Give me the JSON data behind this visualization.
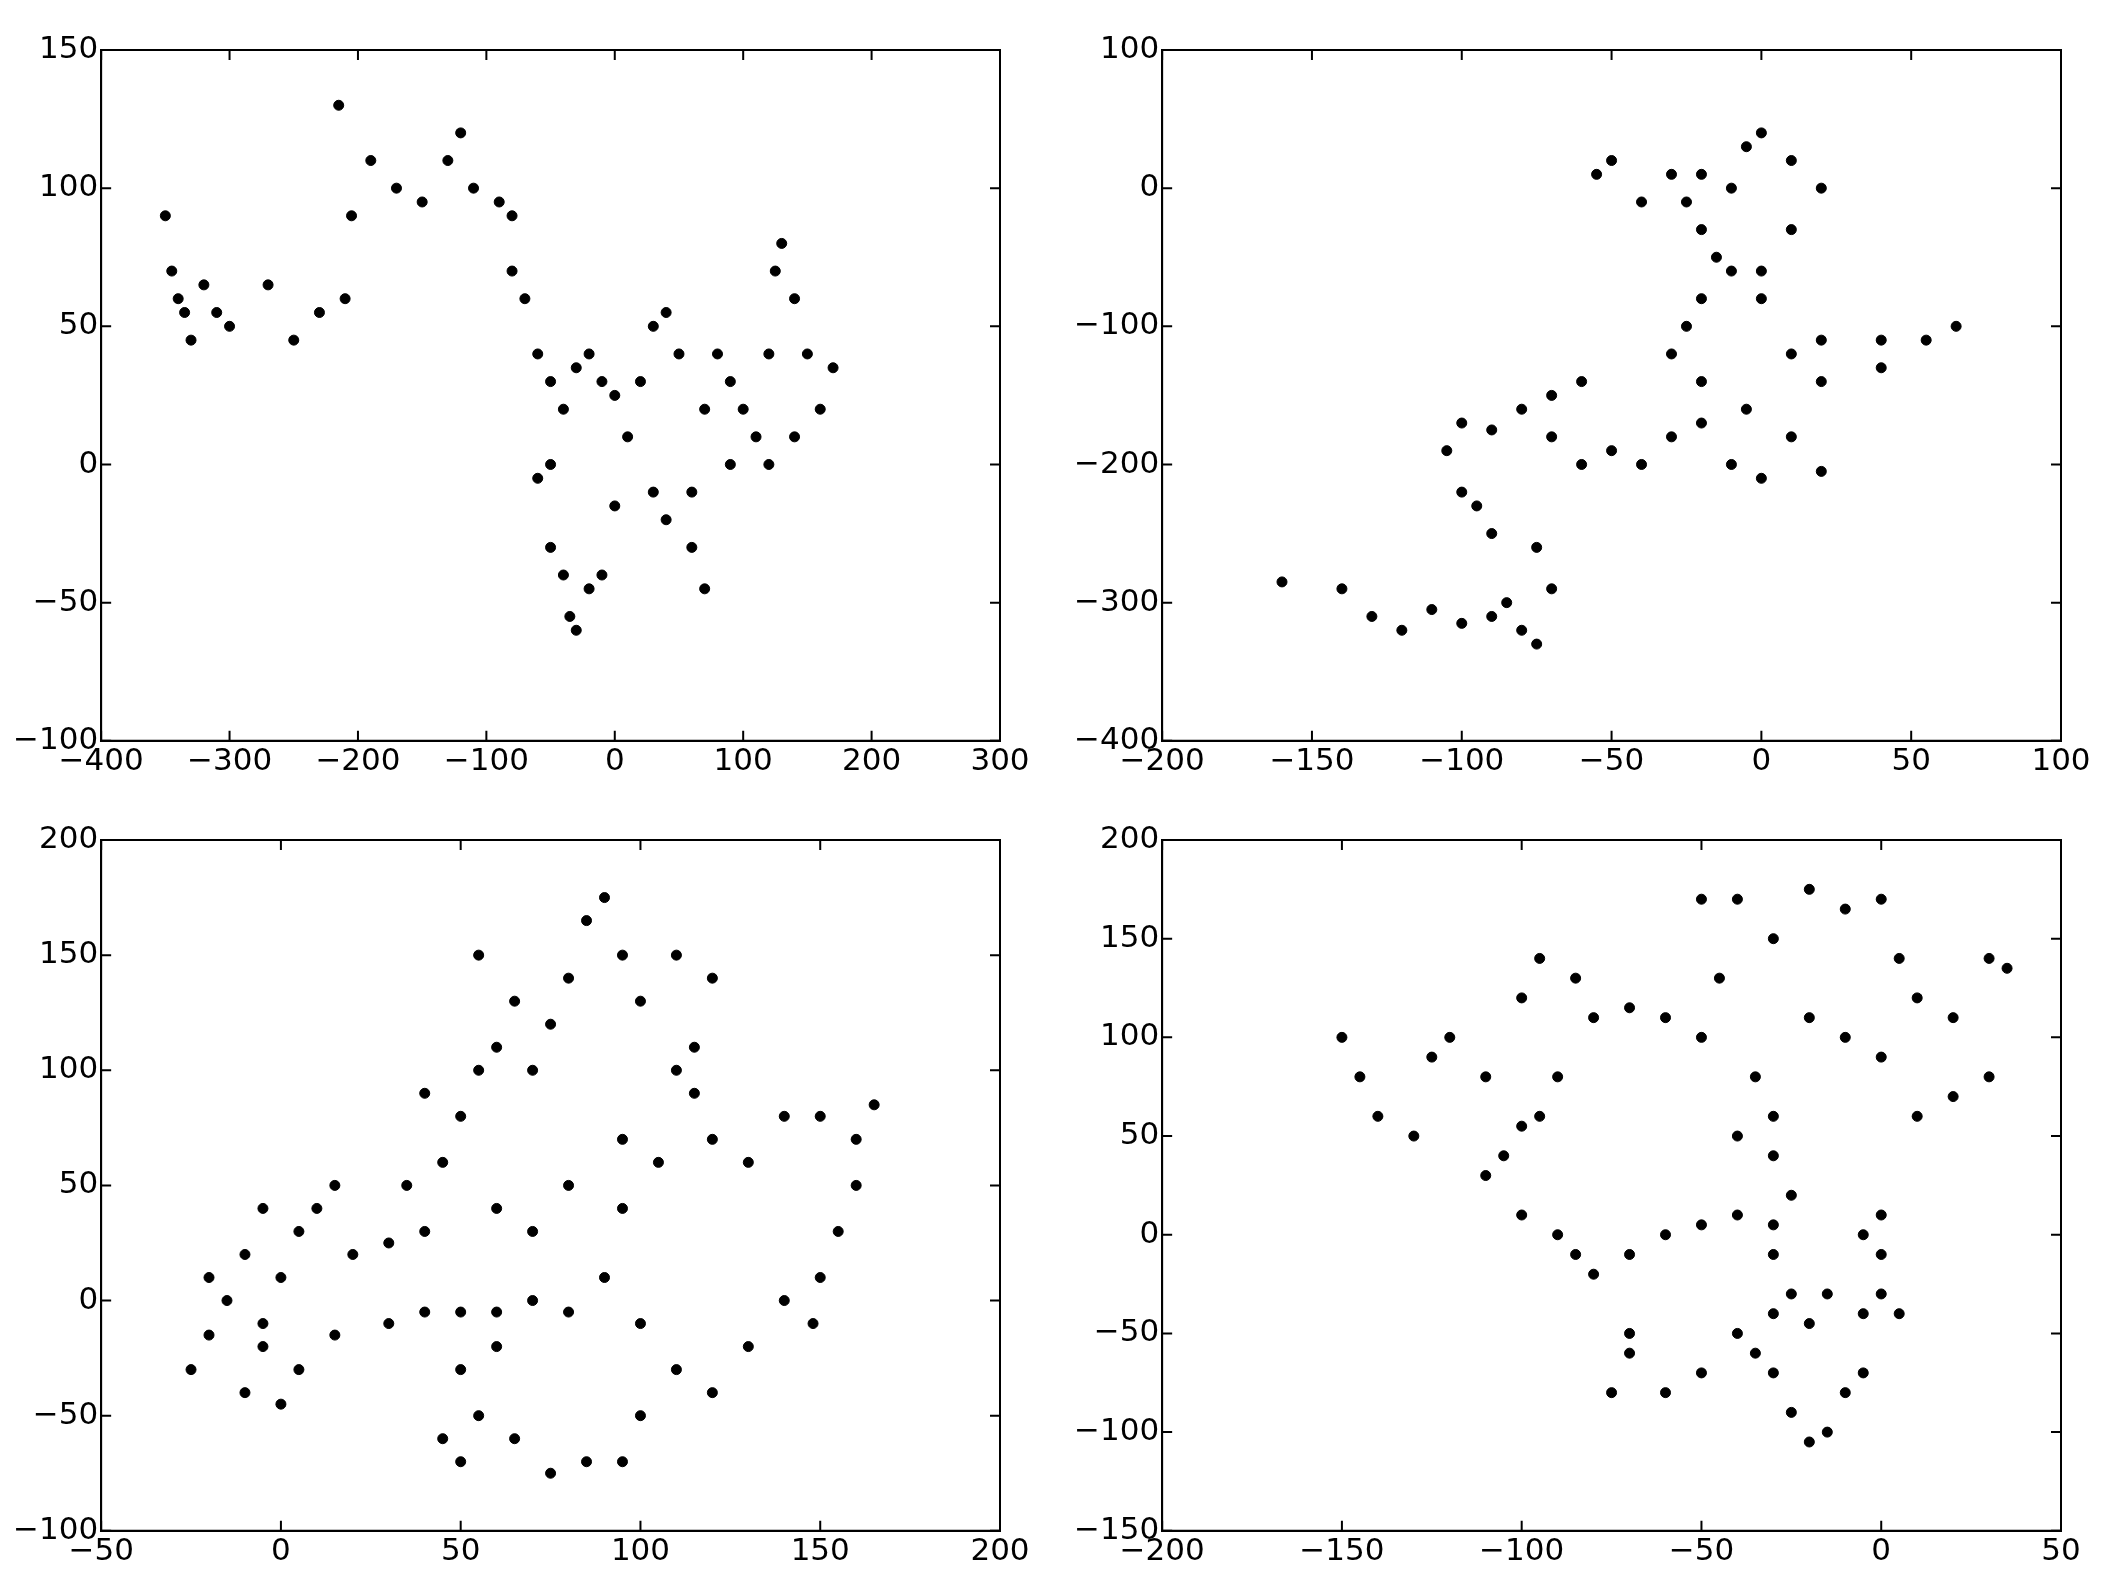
{
  "chart_data": [
    {
      "type": "scatter",
      "color": "#000000",
      "marker": "circle",
      "grid": false,
      "x": [
        -350,
        -345,
        -335,
        -330,
        -320,
        -310,
        -340,
        -300,
        -270,
        -250,
        -230,
        -210,
        -205,
        -215,
        -190,
        -170,
        -150,
        -130,
        -120,
        -110,
        -90,
        -80,
        -80,
        -70,
        -60,
        -50,
        -40,
        -30,
        -20,
        -10,
        0,
        -50,
        -60,
        -50,
        -40,
        -35,
        -30,
        -20,
        -10,
        0,
        10,
        20,
        30,
        40,
        50,
        30,
        40,
        60,
        70,
        60,
        70,
        80,
        90,
        100,
        110,
        120,
        125,
        130,
        140,
        150,
        160,
        170,
        140,
        120,
        90
      ],
      "values": [
        90,
        70,
        55,
        45,
        65,
        55,
        60,
        50,
        65,
        45,
        55,
        60,
        90,
        130,
        110,
        100,
        95,
        110,
        120,
        100,
        95,
        90,
        70,
        60,
        40,
        30,
        20,
        35,
        40,
        30,
        25,
        0,
        -5,
        -30,
        -40,
        -55,
        -60,
        -45,
        -40,
        -15,
        10,
        30,
        50,
        55,
        40,
        -10,
        -20,
        -30,
        -45,
        -10,
        20,
        40,
        30,
        20,
        10,
        40,
        70,
        80,
        60,
        40,
        20,
        35,
        10,
        0,
        0
      ],
      "xlim": [
        -400,
        300
      ],
      "ylim": [
        -100,
        150
      ],
      "xticks": [
        {
          "value": -400,
          "label": "−400"
        },
        {
          "value": -300,
          "label": "−300"
        },
        {
          "value": -200,
          "label": "−200"
        },
        {
          "value": -100,
          "label": "−100"
        },
        0,
        100,
        200,
        300
      ],
      "yticks": [
        {
          "value": -100,
          "label": "−100"
        },
        {
          "value": -50,
          "label": "−50"
        },
        0,
        50,
        100,
        150
      ]
    },
    {
      "type": "scatter",
      "color": "#000000",
      "marker": "circle",
      "grid": false,
      "x": [
        -160,
        -140,
        -130,
        -120,
        -110,
        -100,
        -90,
        -80,
        -75,
        -85,
        -70,
        -75,
        -90,
        -95,
        -100,
        -105,
        -100,
        -90,
        -80,
        -70,
        -60,
        -70,
        -60,
        -50,
        -40,
        -30,
        -20,
        -10,
        0,
        20,
        10,
        -5,
        -20,
        -30,
        -25,
        -20,
        -10,
        0,
        -15,
        -20,
        -25,
        -30,
        -20,
        -10,
        -5,
        0,
        10,
        20,
        10,
        0,
        -40,
        -55,
        -50,
        20,
        40,
        55,
        65,
        40,
        20,
        10
      ],
      "values": [
        -285,
        -290,
        -310,
        -320,
        -305,
        -315,
        -310,
        -320,
        -330,
        -300,
        -290,
        -260,
        -250,
        -230,
        -220,
        -190,
        -170,
        -175,
        -160,
        -150,
        -140,
        -180,
        -200,
        -190,
        -200,
        -180,
        -170,
        -200,
        -210,
        -205,
        -180,
        -160,
        -140,
        -120,
        -100,
        -80,
        -60,
        -80,
        -50,
        -30,
        -10,
        10,
        10,
        0,
        30,
        40,
        20,
        0,
        -30,
        -60,
        -10,
        10,
        20,
        -110,
        -110,
        -110,
        -100,
        -130,
        -140,
        -120
      ],
      "xlim": [
        -200,
        100
      ],
      "ylim": [
        -400,
        100
      ],
      "xticks": [
        {
          "value": -200,
          "label": "−200"
        },
        {
          "value": -150,
          "label": "−150"
        },
        {
          "value": -100,
          "label": "−100"
        },
        {
          "value": -50,
          "label": "−50"
        },
        0,
        50,
        100
      ],
      "yticks": [
        {
          "value": -400,
          "label": "−400"
        },
        {
          "value": -300,
          "label": "−300"
        },
        {
          "value": -200,
          "label": "−200"
        },
        {
          "value": -100,
          "label": "−100"
        },
        0,
        100
      ]
    },
    {
      "type": "scatter",
      "color": "#000000",
      "marker": "circle",
      "grid": false,
      "x": [
        -25,
        -20,
        -15,
        -10,
        -5,
        0,
        5,
        0,
        5,
        10,
        15,
        20,
        30,
        40,
        35,
        45,
        50,
        40,
        55,
        60,
        55,
        65,
        70,
        75,
        80,
        85,
        90,
        95,
        100,
        110,
        120,
        115,
        110,
        115,
        120,
        130,
        140,
        150,
        160,
        165,
        160,
        155,
        150,
        148,
        140,
        130,
        120,
        110,
        100,
        95,
        85,
        75,
        65,
        55,
        50,
        45,
        50,
        60,
        40,
        50,
        60,
        70,
        80,
        90,
        100,
        95,
        105,
        95,
        80,
        70,
        60,
        30,
        15,
        -5,
        -20,
        -10,
        -5
      ],
      "values": [
        -30,
        -15,
        0,
        -40,
        -20,
        -45,
        -30,
        10,
        30,
        40,
        50,
        20,
        25,
        30,
        50,
        60,
        80,
        90,
        100,
        110,
        150,
        130,
        100,
        120,
        140,
        165,
        175,
        150,
        130,
        150,
        140,
        110,
        100,
        90,
        70,
        60,
        80,
        80,
        70,
        85,
        50,
        30,
        10,
        -10,
        0,
        -20,
        -40,
        -30,
        -50,
        -70,
        -70,
        -75,
        -60,
        -50,
        -70,
        -60,
        -30,
        -20,
        -5,
        -5,
        -5,
        0,
        -5,
        10,
        -10,
        40,
        60,
        70,
        50,
        30,
        40,
        -10,
        -15,
        -10,
        10,
        20,
        40
      ],
      "xlim": [
        -50,
        200
      ],
      "ylim": [
        -100,
        200
      ],
      "xticks": [
        {
          "value": -50,
          "label": "−50"
        },
        0,
        50,
        100,
        150,
        200
      ],
      "yticks": [
        {
          "value": -100,
          "label": "−100"
        },
        {
          "value": -50,
          "label": "−50"
        },
        0,
        50,
        100,
        150,
        200
      ]
    },
    {
      "type": "scatter",
      "color": "#000000",
      "marker": "circle",
      "grid": false,
      "x": [
        -150,
        -145,
        -140,
        -130,
        -125,
        -120,
        -110,
        -100,
        -105,
        -95,
        -90,
        -100,
        -95,
        -85,
        -80,
        -70,
        -60,
        -50,
        -45,
        -50,
        -40,
        -30,
        -20,
        -10,
        0,
        5,
        10,
        20,
        30,
        35,
        30,
        20,
        10,
        0,
        -10,
        -20,
        -35,
        -30,
        -40,
        -30,
        -25,
        -30,
        -40,
        -50,
        -60,
        -70,
        -80,
        -85,
        -90,
        -100,
        -110,
        -30,
        -25,
        -20,
        -30,
        -40,
        -50,
        -60,
        -70,
        -75,
        -70,
        -30,
        -25,
        -20,
        -15,
        -10,
        -5,
        -5,
        0,
        5,
        0,
        -5,
        0,
        -15,
        -35
      ],
      "values": [
        100,
        80,
        60,
        50,
        90,
        100,
        80,
        55,
        40,
        60,
        80,
        120,
        140,
        130,
        110,
        115,
        110,
        100,
        130,
        170,
        170,
        150,
        175,
        165,
        170,
        140,
        120,
        110,
        140,
        135,
        80,
        70,
        60,
        90,
        100,
        110,
        80,
        60,
        50,
        40,
        20,
        5,
        10,
        5,
        0,
        -10,
        -20,
        -10,
        0,
        10,
        30,
        -10,
        -30,
        -45,
        -40,
        -50,
        -70,
        -80,
        -60,
        -80,
        -50,
        -70,
        -90,
        -105,
        -100,
        -80,
        -70,
        -40,
        -30,
        -40,
        -10,
        0,
        10,
        -30,
        -60
      ],
      "xlim": [
        -200,
        50
      ],
      "ylim": [
        -150,
        200
      ],
      "xticks": [
        {
          "value": -200,
          "label": "−200"
        },
        {
          "value": -150,
          "label": "−150"
        },
        {
          "value": -100,
          "label": "−100"
        },
        {
          "value": -50,
          "label": "−50"
        },
        0,
        50
      ],
      "yticks": [
        {
          "value": -150,
          "label": "−150"
        },
        {
          "value": -100,
          "label": "−100"
        },
        {
          "value": -50,
          "label": "−50"
        },
        0,
        50,
        100,
        150,
        200
      ]
    }
  ]
}
